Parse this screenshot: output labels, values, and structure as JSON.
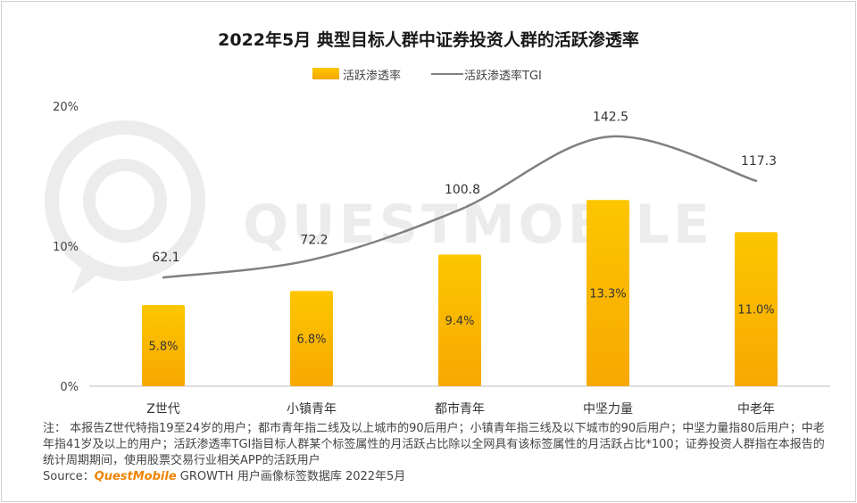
{
  "chart_data": {
    "type": "bar",
    "title": "2022年5月 典型目标人群中证券投资人群的活跃渗透率",
    "categories": [
      "Z世代",
      "小镇青年",
      "都市青年",
      "中坚力量",
      "中老年"
    ],
    "series": [
      {
        "name": "活跃渗透率",
        "kind": "bar",
        "values": [
          5.8,
          6.8,
          9.4,
          13.3,
          11.0
        ],
        "value_labels": [
          "5.8%",
          "6.8%",
          "9.4%",
          "13.3%",
          "11.0%"
        ]
      },
      {
        "name": "活跃渗透率TGI",
        "kind": "line",
        "values": [
          62.1,
          72.2,
          100.8,
          142.5,
          117.3
        ],
        "value_labels": [
          "62.1",
          "72.2",
          "100.8",
          "142.5",
          "117.3"
        ]
      }
    ],
    "ylim": [
      0,
      20
    ],
    "yticks": [
      0,
      10,
      20
    ],
    "ytick_labels": [
      "0%",
      "10%",
      "20%"
    ],
    "y2lim": [
      0,
      160
    ],
    "legend_position": "top",
    "colors": {
      "bar_top": "#fcc600",
      "bar_bottom": "#f7a800",
      "line": "#808080"
    }
  },
  "footnote": "注：  本报告Z世代特指19至24岁的用户；都市青年指二线及以上城市的90后用户；小镇青年指三线及以下城市的90后用户；中坚力量指80后用户；中老年指41岁及以上的用户；活跃渗透率TGI指目标人群某个标签属性的月活跃占比除以全网具有该标签属性的月活跃占比*100；证券投资人群指在本报告的统计周期期间，使用股票交易行业相关APP的活跃用户",
  "source": {
    "label": "Source：",
    "brand": "QuestMobile",
    "text": "GROWTH 用户画像标签数据库 2022年5月"
  },
  "watermark": "QUESTMOBILE"
}
